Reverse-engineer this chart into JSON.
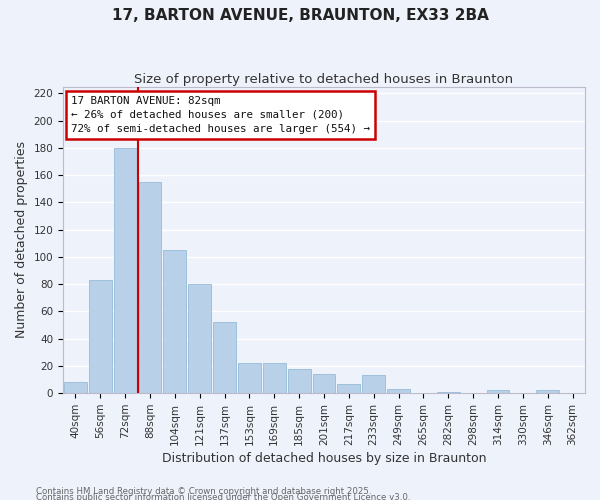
{
  "title": "17, BARTON AVENUE, BRAUNTON, EX33 2BA",
  "subtitle": "Size of property relative to detached houses in Braunton",
  "bar_labels": [
    "40sqm",
    "56sqm",
    "72sqm",
    "88sqm",
    "104sqm",
    "121sqm",
    "137sqm",
    "153sqm",
    "169sqm",
    "185sqm",
    "201sqm",
    "217sqm",
    "233sqm",
    "249sqm",
    "265sqm",
    "282sqm",
    "298sqm",
    "314sqm",
    "330sqm",
    "346sqm",
    "362sqm"
  ],
  "bar_values": [
    8,
    83,
    180,
    155,
    105,
    80,
    52,
    22,
    22,
    18,
    14,
    7,
    13,
    3,
    0,
    1,
    0,
    2,
    0,
    2,
    0
  ],
  "bar_color": "#b8d0e8",
  "bar_edgecolor": "#8ab4d4",
  "vline_color": "#cc0000",
  "vline_x": 2.5,
  "ylabel": "Number of detached properties",
  "xlabel": "Distribution of detached houses by size in Braunton",
  "ylim": [
    0,
    225
  ],
  "yticks": [
    0,
    20,
    40,
    60,
    80,
    100,
    120,
    140,
    160,
    180,
    200,
    220
  ],
  "annotation_title": "17 BARTON AVENUE: 82sqm",
  "annotation_line1": "← 26% of detached houses are smaller (200)",
  "annotation_line2": "72% of semi-detached houses are larger (554) →",
  "annotation_box_edgecolor": "#cc0000",
  "footer_line1": "Contains HM Land Registry data © Crown copyright and database right 2025.",
  "footer_line2": "Contains public sector information licensed under the Open Government Licence v3.0.",
  "background_color": "#eef2fb",
  "grid_color": "#ffffff",
  "title_fontsize": 11,
  "subtitle_fontsize": 9.5,
  "axis_label_fontsize": 9,
  "tick_fontsize": 7.5,
  "annotation_fontsize": 7.8,
  "footer_fontsize": 6.2
}
